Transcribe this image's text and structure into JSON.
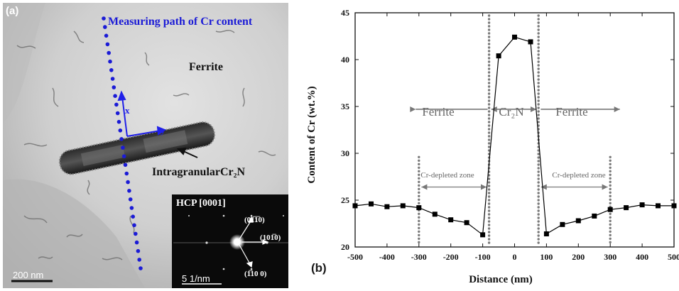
{
  "panel_a": {
    "label": "(a)",
    "path_caption": "Measuring path of Cr content",
    "ferrite_label": "Ferrite",
    "precipitate_label": "IntragranularCr₂N",
    "zone_axis": "HCP [0001]",
    "diffraction_spots": [
      "(01̅1̅0)",
      "(101̅0)",
      "(1̅10 0)"
    ],
    "scale_bar": "200 nm",
    "saed_scale_bar": "5 1/nm",
    "axis_x": "x",
    "axis_y": "y",
    "path_color": "#1b1bd6"
  },
  "panel_b": {
    "label": "(b)"
  },
  "chart_data": {
    "type": "line",
    "xlabel": "Distance (nm)",
    "ylabel": "Content of Cr (wt.%)",
    "xlim": [
      -500,
      500
    ],
    "ylim": [
      20,
      45
    ],
    "xticks": [
      -500,
      -400,
      -300,
      -200,
      -100,
      0,
      100,
      200,
      300,
      400,
      500
    ],
    "yticks": [
      20,
      25,
      30,
      35,
      40,
      45
    ],
    "grid": false,
    "series": [
      {
        "marker": "square",
        "color": "#000000",
        "x": [
          -500,
          -450,
          -400,
          -350,
          -300,
          -250,
          -200,
          -150,
          -100,
          -50,
          0,
          50,
          100,
          150,
          200,
          250,
          300,
          350,
          400,
          450,
          500
        ],
        "y": [
          24.4,
          24.6,
          24.3,
          24.4,
          24.2,
          23.5,
          22.9,
          22.6,
          21.3,
          40.4,
          42.4,
          41.9,
          21.4,
          22.4,
          22.8,
          23.3,
          24.0,
          24.2,
          24.5,
          24.4,
          24.4
        ]
      }
    ],
    "boundaries": [
      -300,
      -80,
      75,
      300
    ],
    "annotations": {
      "ferrite_left": "Ferrite",
      "cr2n": "Cr₂N",
      "ferrite_right": "Ferrite",
      "depleted_left": "Cr-depleted zone",
      "depleted_right": "Cr-depleted zone"
    }
  }
}
